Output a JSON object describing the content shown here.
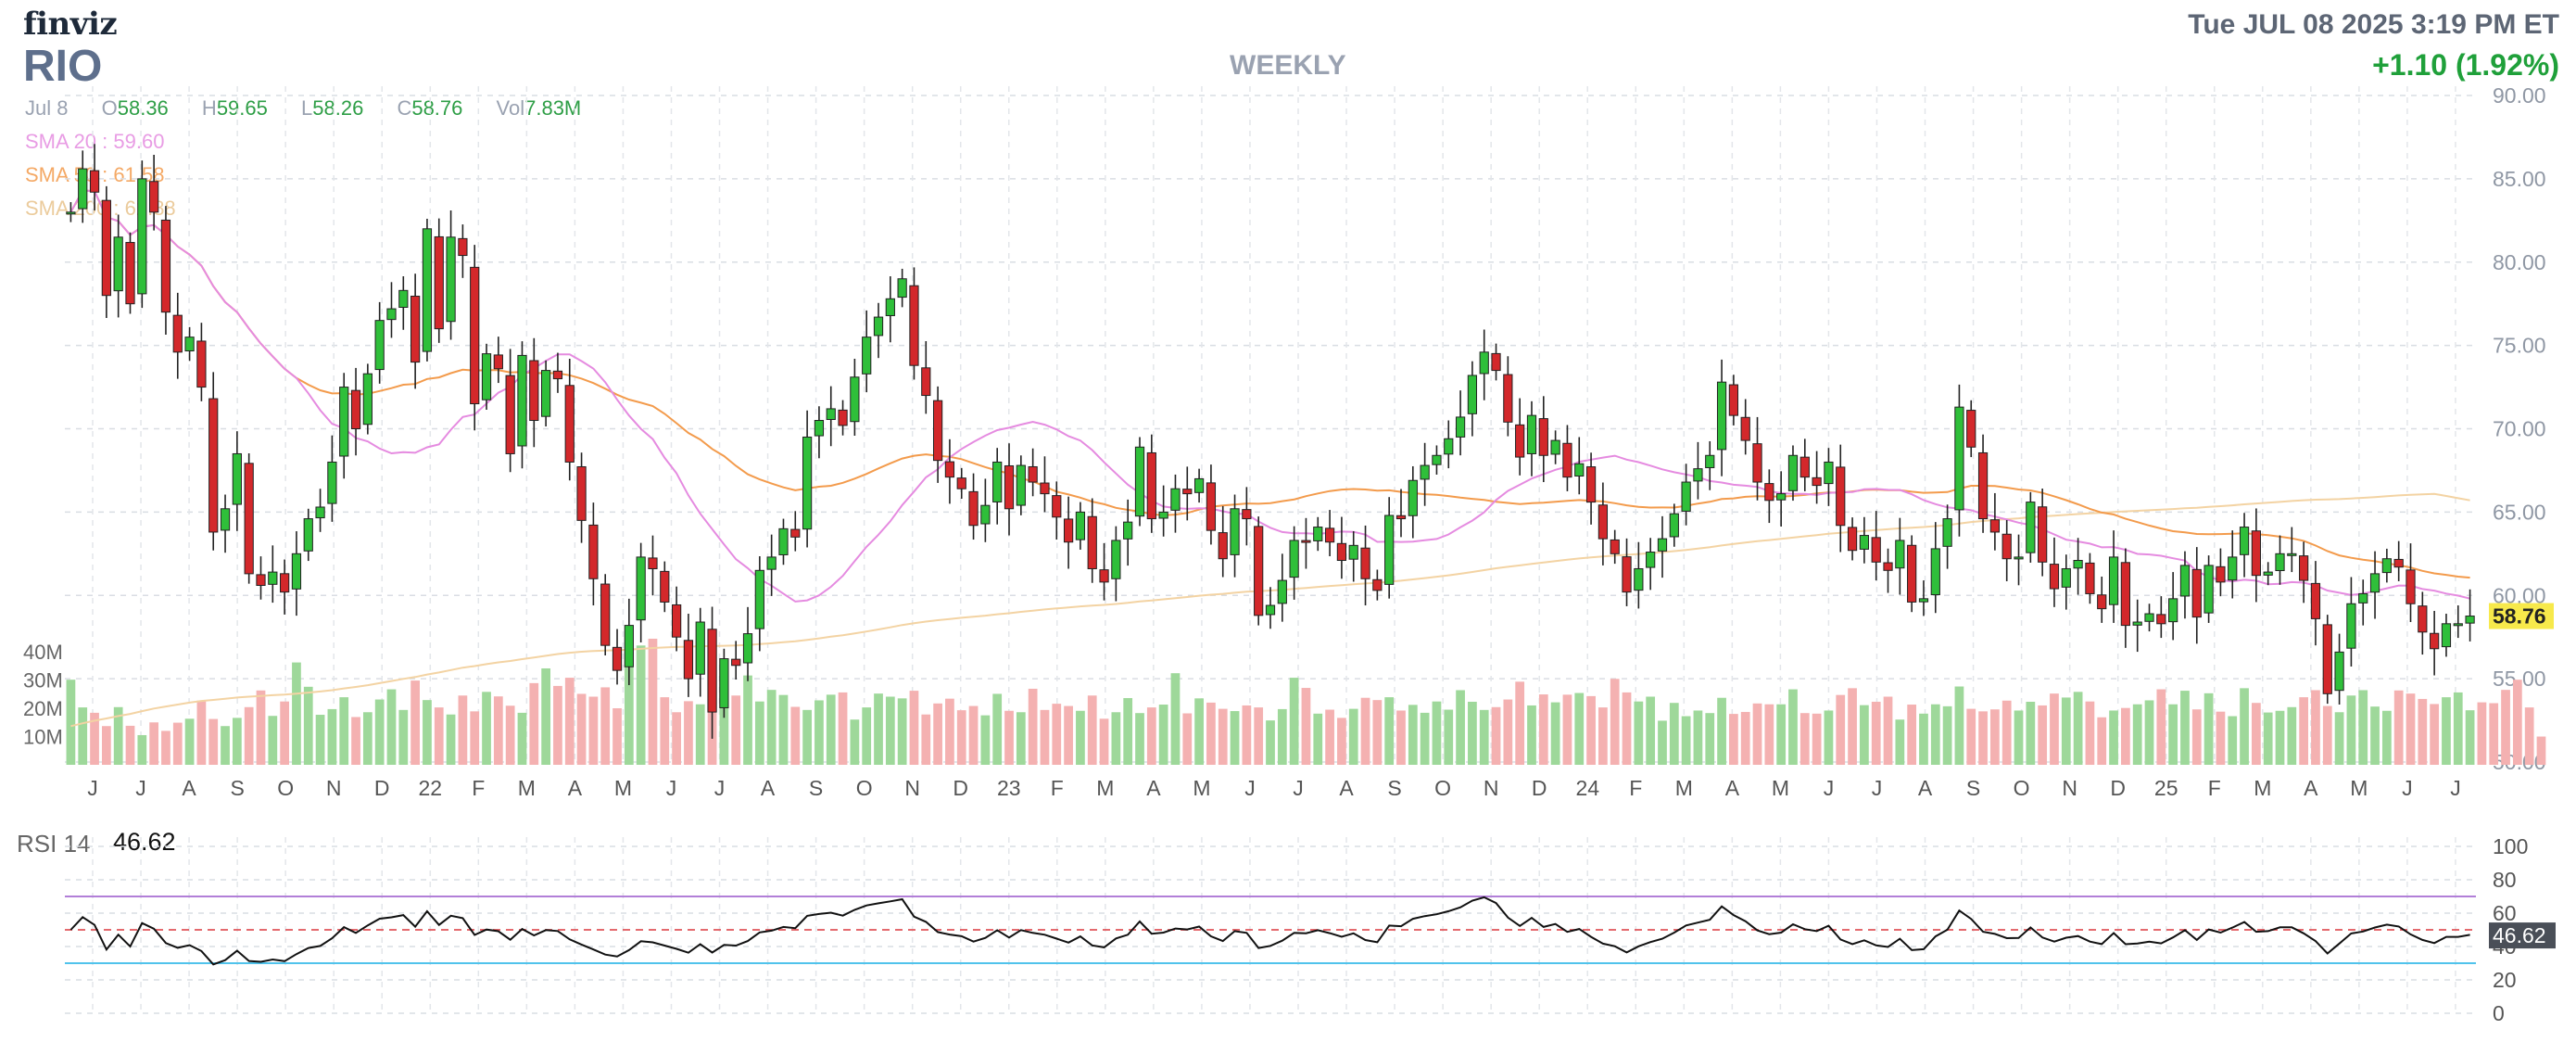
{
  "header": {
    "logo": "finviz",
    "ticker": "RIO",
    "interval": "WEEKLY",
    "datetime": "Tue JUL 08 2025 3:19 PM ET",
    "change": "+1.10 (1.92%)"
  },
  "ohlc": {
    "date": "Jul 8",
    "o_label": "O",
    "o": "58.36",
    "h_label": "H",
    "h": "59.65",
    "l_label": "L",
    "l": "58.26",
    "c_label": "C",
    "c": "58.76",
    "vol_label": "Vol",
    "vol": "7.83M"
  },
  "sma": {
    "sma20": "SMA 20 : 59.60",
    "sma50": "SMA 50 : 61.58",
    "sma200": "SMA 200 : 62.88"
  },
  "colors": {
    "up": "#2fbf3a",
    "down": "#d3282b",
    "vol_up": "#9ed89a",
    "vol_down": "#f4b1b1",
    "sma20": "#e58be0",
    "sma50": "#f39b4c",
    "sma200": "#f3d3a3",
    "rsi_line": "#111111",
    "rsi_upper": "#b27fd8",
    "rsi_lower": "#50c3ec",
    "rsi_mid": "#e0555a",
    "price_tag": "#f7e94b"
  },
  "rsi": {
    "label": "RSI 14",
    "value": "46.62",
    "ticks": [
      "100",
      "80",
      "60",
      "40",
      "20",
      "0"
    ]
  },
  "chart_data": [
    {
      "type": "candlestick",
      "title": "RIO",
      "interval": "WEEKLY",
      "x_labels": [
        "J",
        "J",
        "A",
        "S",
        "O",
        "N",
        "D",
        "22",
        "F",
        "M",
        "A",
        "M",
        "J",
        "J",
        "A",
        "S",
        "O",
        "N",
        "D",
        "23",
        "F",
        "M",
        "A",
        "M",
        "J",
        "J",
        "A",
        "S",
        "O",
        "N",
        "D",
        "24",
        "F",
        "M",
        "A",
        "M",
        "J",
        "J",
        "A",
        "S",
        "O",
        "N",
        "D",
        "25",
        "F",
        "M",
        "A",
        "M",
        "J",
        "J"
      ],
      "y_ticks": [
        "90.00",
        "85.00",
        "80.00",
        "75.00",
        "70.00",
        "65.00",
        "60.00",
        "55.00",
        "50.00"
      ],
      "ylim": [
        50,
        90
      ],
      "volume_ticks": [
        "40M",
        "30M",
        "20M",
        "10M"
      ],
      "last_price": "58.76",
      "start_close": 83.0,
      "closes": [
        83.0,
        85.6,
        84.2,
        78.0,
        81.5,
        77.5,
        85.0,
        83.0,
        77.0,
        74.6,
        75.5,
        72.5,
        63.8,
        65.2,
        68.5,
        61.3,
        60.6,
        61.4,
        60.2,
        62.5,
        64.6,
        65.3,
        68.0,
        72.5,
        70.0,
        73.3,
        76.5,
        77.2,
        78.3,
        74.0,
        82.0,
        76.0,
        81.5,
        80.4,
        71.5,
        74.5,
        73.6,
        68.5,
        74.4,
        70.5,
        73.5,
        73.0,
        68.0,
        64.5,
        61.0,
        57.0,
        55.5,
        58.2,
        62.3,
        61.6,
        59.6,
        57.5,
        55.0,
        58.4,
        53.0,
        56.2,
        55.8,
        57.7,
        61.5,
        62.3,
        64.0,
        63.5,
        69.5,
        70.5,
        71.2,
        70.2,
        73.1,
        75.5,
        76.7,
        77.8,
        79.0,
        73.8,
        72.0,
        68.1,
        67.1,
        66.4,
        64.2,
        65.4,
        68.0,
        65.2,
        67.8,
        66.8,
        66.1,
        64.7,
        63.2,
        65.0,
        61.6,
        60.8,
        63.3,
        64.4,
        68.9,
        64.6,
        65.0,
        66.4,
        66.1,
        67.0,
        63.9,
        62.2,
        65.2,
        64.6,
        58.8,
        59.4,
        60.9,
        63.3,
        63.2,
        64.1,
        63.2,
        62.1,
        63.0,
        61.0,
        60.3,
        64.8,
        64.6,
        66.9,
        67.8,
        68.4,
        69.4,
        70.7,
        73.2,
        74.6,
        73.5,
        70.4,
        68.3,
        70.8,
        68.4,
        69.3,
        67.1,
        67.9,
        65.6,
        63.4,
        62.5,
        60.2,
        61.6,
        62.6,
        63.4,
        64.9,
        66.8,
        67.6,
        68.4,
        72.8,
        70.8,
        69.3,
        66.8,
        65.7,
        66.1,
        68.4,
        67.1,
        66.6,
        68.0,
        64.2,
        62.7,
        63.6,
        62.0,
        61.5,
        63.3,
        59.6,
        59.8,
        62.8,
        64.6,
        71.3,
        68.9,
        64.6,
        63.8,
        62.2,
        62.3,
        65.6,
        62.0,
        60.4,
        61.6,
        62.1,
        60.1,
        59.2,
        62.3,
        58.2,
        58.4,
        58.9,
        58.3,
        59.8,
        61.8,
        58.7,
        61.8,
        60.8,
        62.3,
        64.1,
        61.2,
        61.4,
        62.5,
        62.5,
        60.9,
        58.6,
        54.1,
        56.6,
        59.5,
        60.1,
        61.3,
        62.2,
        61.7,
        59.5,
        57.8,
        56.8,
        58.3,
        58.3,
        58.76
      ],
      "volume_m": [
        30.1,
        20.3,
        18.4,
        13.7,
        20.4,
        13.8,
        10.5,
        15.0,
        12.0,
        14.9,
        16.3,
        22.7,
        16.2,
        13.7,
        16.6,
        20.4,
        26.3,
        17.3,
        22.4,
        36.2,
        27.6,
        17.7,
        19.7,
        23.9,
        16.9,
        18.6,
        23.1,
        26.7,
        19.4,
        29.8,
        22.9,
        20.3,
        17.8,
        24.5,
        18.9,
        25.8,
        24.2,
        20.9,
        18.4,
        28.9,
        34.1,
        27.9,
        30.8,
        25.1,
        24.1,
        27.4,
        20.0,
        39.9,
        42.2,
        44.6,
        23.9,
        18.6,
        22.5,
        21.4,
        29.4,
        26.5,
        24.5,
        31.6,
        22.4,
        26.5,
        24.7,
        20.5,
        19.4,
        22.8,
        24.8,
        25.6,
        16.0,
        20.3,
        25.2,
        24.1,
        23.5,
        26.2,
        17.8,
        21.7,
        23.4,
        19.3,
        20.8,
        17.5,
        25.1,
        19.1,
        18.6,
        26.9,
        19.4,
        21.6,
        20.8,
        19.1,
        24.5,
        16.3,
        18.6,
        23.6,
        18.3,
        20.3,
        21.3,
        32.4,
        18.2,
        23.5,
        22.0,
        19.8,
        19.0,
        21.0,
        20.3,
        15.7,
        19.7,
        30.8,
        27.2,
        18.1,
        19.5,
        16.6,
        19.8,
        23.7,
        22.9,
        23.9,
        19.2,
        21.2,
        18.4,
        22.4,
        19.5,
        26.4,
        22.3,
        19.4,
        20.4,
        23.1,
        29.4,
        21.0,
        24.9,
        22.1,
        24.8,
        25.4,
        24.3,
        20.3,
        30.4,
        25.6,
        22.4,
        24.1,
        15.6,
        21.9,
        17.2,
        19.2,
        18.3,
        23.7,
        18.0,
        18.7,
        21.7,
        21.4,
        21.4,
        26.7,
        18.3,
        18.1,
        19.2,
        24.7,
        27.1,
        21.1,
        22.3,
        24.1,
        16.0,
        21.3,
        18.1,
        21.4,
        20.7,
        27.7,
        19.8,
        18.9,
        19.6,
        22.7,
        19.2,
        22.3,
        21.0,
        25.2,
        23.8,
        25.8,
        22.4,
        16.8,
        19.2,
        20.1,
        21.4,
        22.8,
        26.7,
        21.4,
        26.2,
        19.6,
        25.3,
        18.8,
        17.2,
        27.1,
        21.9,
        18.5,
        19.1,
        20.4,
        23.9,
        26.4,
        20.8,
        18.6,
        24.5,
        26.4,
        20.6,
        19.1,
        26.3,
        25.2,
        23.3,
        21.5,
        23.9,
        25.6,
        19.3,
        22.1,
        21.8,
        26.5,
        30.1,
        20.3,
        10.0
      ]
    },
    {
      "type": "line",
      "title": "RSI 14",
      "ylim": [
        0,
        100
      ],
      "levels": [
        30,
        50,
        70
      ],
      "value": 46.62
    }
  ]
}
